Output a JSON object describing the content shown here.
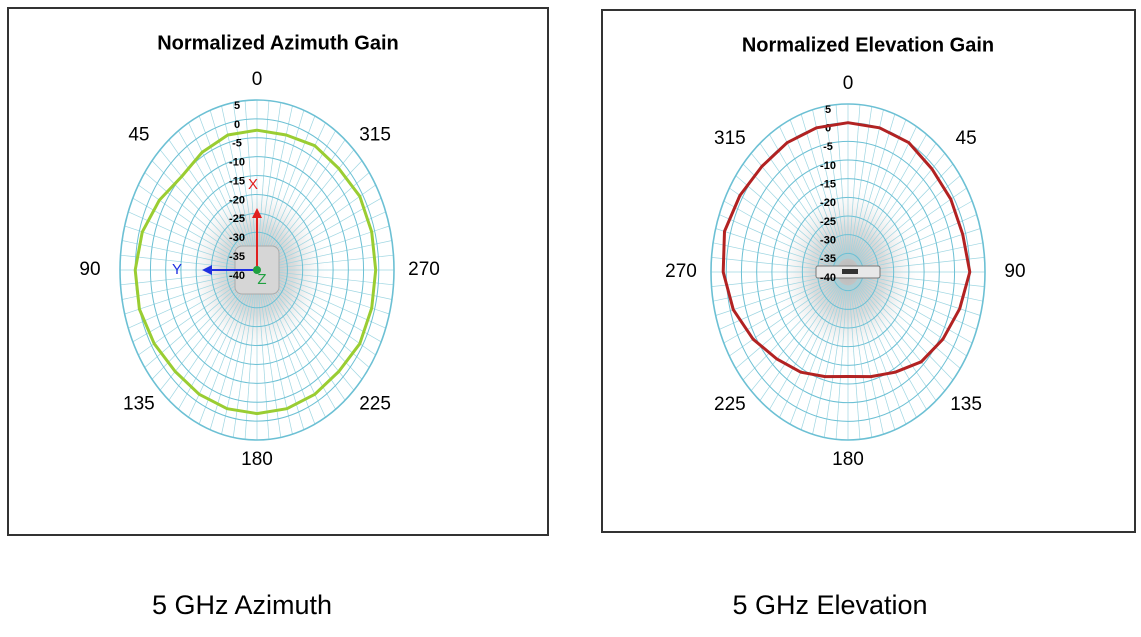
{
  "chart_data": [
    {
      "type": "polar",
      "title": "Normalized Azimuth Gain",
      "caption": "5 GHz Azimuth",
      "direction": "counterclockwise",
      "angles": [
        0,
        45,
        90,
        135,
        180,
        225,
        270,
        315
      ],
      "rlim": [
        -40,
        5
      ],
      "rticks": [
        5,
        0,
        -5,
        -10,
        -15,
        -20,
        -25,
        -30,
        -35,
        -40
      ],
      "annotations": [
        "X",
        "Y",
        "Z"
      ],
      "theta": [
        0,
        15,
        30,
        45,
        60,
        75,
        90,
        105,
        120,
        135,
        150,
        165,
        180,
        195,
        210,
        225,
        240,
        255,
        270,
        285,
        300,
        315,
        330,
        345
      ],
      "series": [
        {
          "color": "#9acd32",
          "values": [
            -3,
            -3,
            -4,
            -5,
            -3,
            -1,
            0,
            0,
            -1,
            -2,
            -2,
            -2,
            -2,
            -2,
            -2,
            -2,
            -1,
            -1,
            -1,
            -1,
            -1,
            -2,
            -2,
            -3
          ]
        }
      ]
    },
    {
      "type": "polar",
      "title": "Normalized Elevation Gain",
      "caption": "5 GHz Elevation",
      "direction": "clockwise",
      "angles": [
        0,
        45,
        90,
        135,
        180,
        225,
        270,
        315
      ],
      "rlim": [
        -40,
        5
      ],
      "rticks": [
        5,
        0,
        -5,
        -10,
        -15,
        -20,
        -25,
        -30,
        -35,
        -40
      ],
      "theta": [
        0,
        15,
        30,
        45,
        60,
        75,
        90,
        105,
        120,
        135,
        150,
        165,
        180,
        195,
        210,
        225,
        240,
        255,
        270,
        285,
        300,
        315,
        330,
        345
      ],
      "series": [
        {
          "color": "#b22222",
          "values": [
            0,
            0,
            0,
            -1,
            -1,
            -1,
            0,
            -2,
            -4,
            -6,
            -9,
            -11,
            -12,
            -11,
            -9,
            -7,
            -4,
            -1,
            1,
            2,
            1,
            0,
            0,
            0
          ]
        }
      ]
    }
  ]
}
